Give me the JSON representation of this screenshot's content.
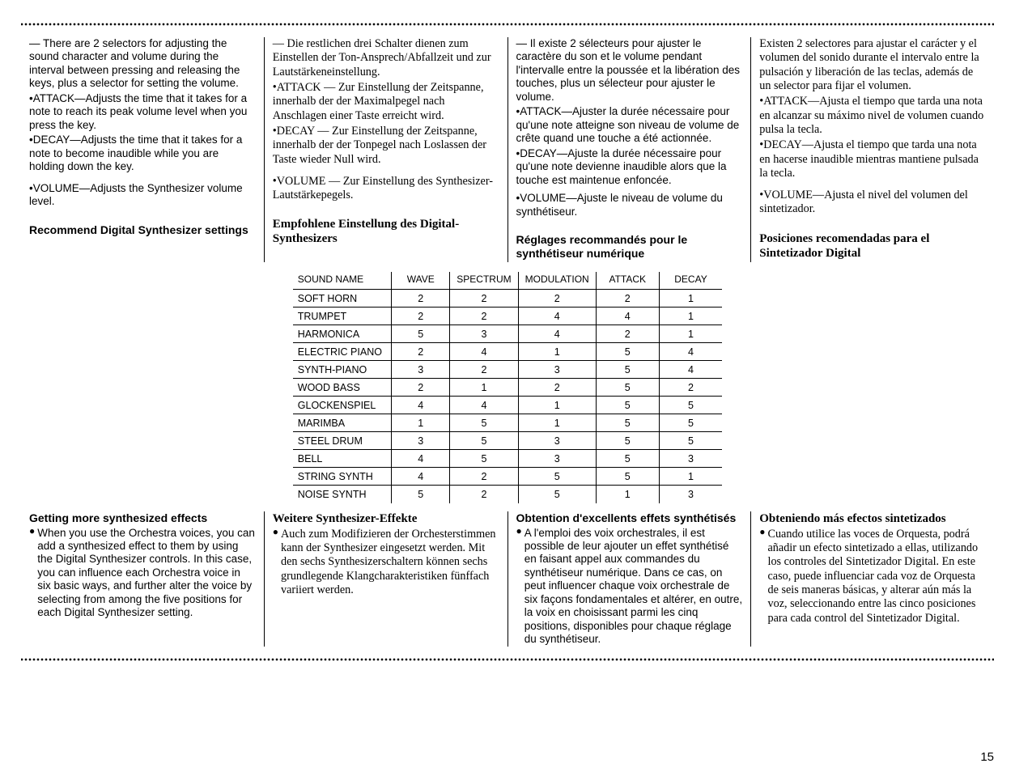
{
  "page_number": "15",
  "top": {
    "en": {
      "intro": "— There are 2 selectors for adjusting the sound character and volume during the interval between pressing and releasing the keys, plus a selector for setting the volume.",
      "attack_label": "•ATTACK—",
      "attack": "Adjusts the time that it takes for a note to reach its peak volume level when you press the key.",
      "decay_label": "•DECAY—",
      "decay": "Adjusts the time that it takes for a note to become inaudible while you are holding down the key.",
      "volume_label": "•VOLUME—",
      "volume": "Adjusts the Synthesizer volume level.",
      "subhead": "Recommend Digital Synthesizer settings"
    },
    "de": {
      "intro": "— Die restlichen drei Schalter dienen zum Einstellen der Ton-Ansprech/Abfallzeit und zur Lautstärkeneinstellung.",
      "attack_label": "•ATTACK —",
      "attack": " Zur Einstellung der Zeitspanne, innerhalb der der Maximalpegel nach Anschlagen einer Taste erreicht wird.",
      "decay_label": "•DECAY —",
      "decay": " Zur Einstellung der Zeitspanne, innerhalb der der Tonpegel nach Loslassen der Taste wieder Null wird.",
      "volume_label": "•VOLUME —",
      "volume": " Zur Einstellung des Synthesizer-Lautstärkepegels.",
      "subhead": "Empfohlene Einstellung des Digital-Synthesizers"
    },
    "fr": {
      "intro": "— Il existe 2 sélecteurs pour ajuster le caractère du son et le volume pendant l'intervalle entre la poussée et la libération des touches, plus un sélecteur pour ajuster le volume.",
      "attack_label": "•ATTACK—",
      "attack": "Ajuster la durée nécessaire pour qu'une note atteigne son niveau de volume de crête quand une touche a été actionnée.",
      "decay_label": "•DECAY—",
      "decay": "Ajuste la durée nécessaire pour qu'une note devienne inaudible alors que la touche est maintenue enfoncée.",
      "volume_label": "•VOLUME—",
      "volume": "Ajuste le niveau de volume du synthétiseur.",
      "subhead": "Réglages recommandés pour le synthétiseur numérique"
    },
    "es": {
      "intro": "Existen 2 selectores para ajustar el carácter y el volumen del sonido durante el intervalo entre la pulsación y liberación de las teclas, además de un selector para fijar el volumen.",
      "attack_label": "•ATTACK—",
      "attack": "Ajusta el tiempo que tarda una nota en alcanzar su máximo nivel de volumen cuando pulsa la tecla.",
      "decay_label": "•DECAY—",
      "decay": "Ajusta el tiempo que tarda una nota en hacerse inaudible mientras mantiene pulsada la tecla.",
      "volume_label": "•VOLUME—",
      "volume": "Ajusta el nivel del volumen del sintetizador.",
      "subhead": "Posiciones recomendadas para el Sintetizador Digital"
    }
  },
  "table": {
    "columns": [
      "SOUND NAME",
      "WAVE",
      "SPECTRUM",
      "MODULATION",
      "ATTACK",
      "DECAY"
    ],
    "rows": [
      [
        "SOFT HORN",
        "2",
        "2",
        "2",
        "2",
        "1"
      ],
      [
        "TRUMPET",
        "2",
        "2",
        "4",
        "4",
        "1"
      ],
      [
        "HARMONICA",
        "5",
        "3",
        "4",
        "2",
        "1"
      ],
      [
        "ELECTRIC PIANO",
        "2",
        "4",
        "1",
        "5",
        "4"
      ],
      [
        "SYNTH-PIANO",
        "3",
        "2",
        "3",
        "5",
        "4"
      ],
      [
        "WOOD BASS",
        "2",
        "1",
        "2",
        "5",
        "2"
      ],
      [
        "GLOCKENSPIEL",
        "4",
        "4",
        "1",
        "5",
        "5"
      ],
      [
        "MARIMBA",
        "1",
        "5",
        "1",
        "5",
        "5"
      ],
      [
        "STEEL DRUM",
        "3",
        "5",
        "3",
        "5",
        "5"
      ],
      [
        "BELL",
        "4",
        "5",
        "3",
        "5",
        "3"
      ],
      [
        "STRING SYNTH",
        "4",
        "2",
        "5",
        "5",
        "1"
      ],
      [
        "NOISE SYNTH",
        "5",
        "2",
        "5",
        "1",
        "3"
      ]
    ]
  },
  "bottom": {
    "en": {
      "head": "Getting more synthesized effects",
      "body": "When you use the Orchestra voices, you can add a synthesized effect to them by using the Digital Synthesizer controls. In this case, you can influence each Orchestra voice in six basic ways, and further alter the voice by selecting from among the five positions for each Digital Synthesizer setting."
    },
    "de": {
      "head": "Weitere Synthesizer-Effekte",
      "body": "Auch zum Modifizieren der Orchesterstimmen kann der Synthesizer eingesetzt werden. Mit den sechs Synthesizerschaltern können sechs grundlegende Klangcharakteristiken fünffach variiert werden."
    },
    "fr": {
      "head": "Obtention d'excellents effets synthétisés",
      "body": "A l'emploi des voix orchestrales, il est possible de leur ajouter un effet synthétisé en faisant appel aux commandes du synthétiseur numérique. Dans ce cas, on peut influencer chaque voix orchestrale de six façons fondamentales et altérer, en outre, la voix en choisissant parmi les cinq positions, disponibles pour chaque réglage du synthétiseur."
    },
    "es": {
      "head": "Obteniendo más efectos sintetizados",
      "body": "Cuando utilice las voces de Orquesta, podrá añadir un efecto sintetizado a ellas, utilizando los controles del Sintetizador Digital. En este caso, puede influenciar cada voz de Orquesta de seis maneras básicas, y alterar aún más la voz, seleccionando entre las cinco posiciones para cada control del Sintetizador Digital."
    }
  }
}
